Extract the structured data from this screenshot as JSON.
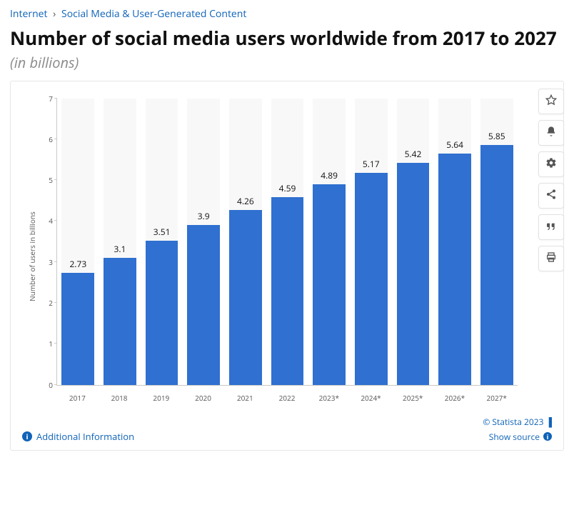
{
  "breadcrumb": {
    "items": [
      "Internet",
      "Social Media & User-Generated Content"
    ],
    "link_color": "#0f63b8"
  },
  "title": "Number of social media users worldwide from 2017 to 2027",
  "subtitle": "(in billions)",
  "chart": {
    "type": "bar",
    "y_axis_label": "Number of users in billions",
    "ylim": [
      0,
      7
    ],
    "ytick_step": 1,
    "yticks": [
      0,
      1,
      2,
      3,
      4,
      5,
      6,
      7
    ],
    "categories": [
      "2017",
      "2018",
      "2019",
      "2020",
      "2021",
      "2022",
      "2023*",
      "2024*",
      "2025*",
      "2026*",
      "2027*"
    ],
    "values": [
      2.73,
      3.1,
      3.51,
      3.9,
      4.26,
      4.59,
      4.89,
      5.17,
      5.42,
      5.64,
      5.85
    ],
    "value_labels": [
      "2.73",
      "3.1",
      "3.51",
      "3.9",
      "4.26",
      "4.59",
      "4.89",
      "5.17",
      "5.42",
      "5.64",
      "5.85"
    ],
    "bar_color": "#2f70d0",
    "stripe_color": "#f8f8f8",
    "background_color": "#ffffff",
    "axis_color": "#c9c9c9",
    "label_fontsize": 12,
    "tick_fontsize": 10,
    "bar_width_ratio": 0.78
  },
  "footer": {
    "additional_info": "Additional Information",
    "copyright": "© Statista 2023",
    "show_source": "Show source"
  },
  "toolbar": {
    "icons": [
      "star",
      "bell",
      "gear",
      "share",
      "quote",
      "print"
    ]
  },
  "colors": {
    "link": "#0f63b8",
    "text": "#1a1a1a",
    "muted": "#8b8b8b"
  }
}
